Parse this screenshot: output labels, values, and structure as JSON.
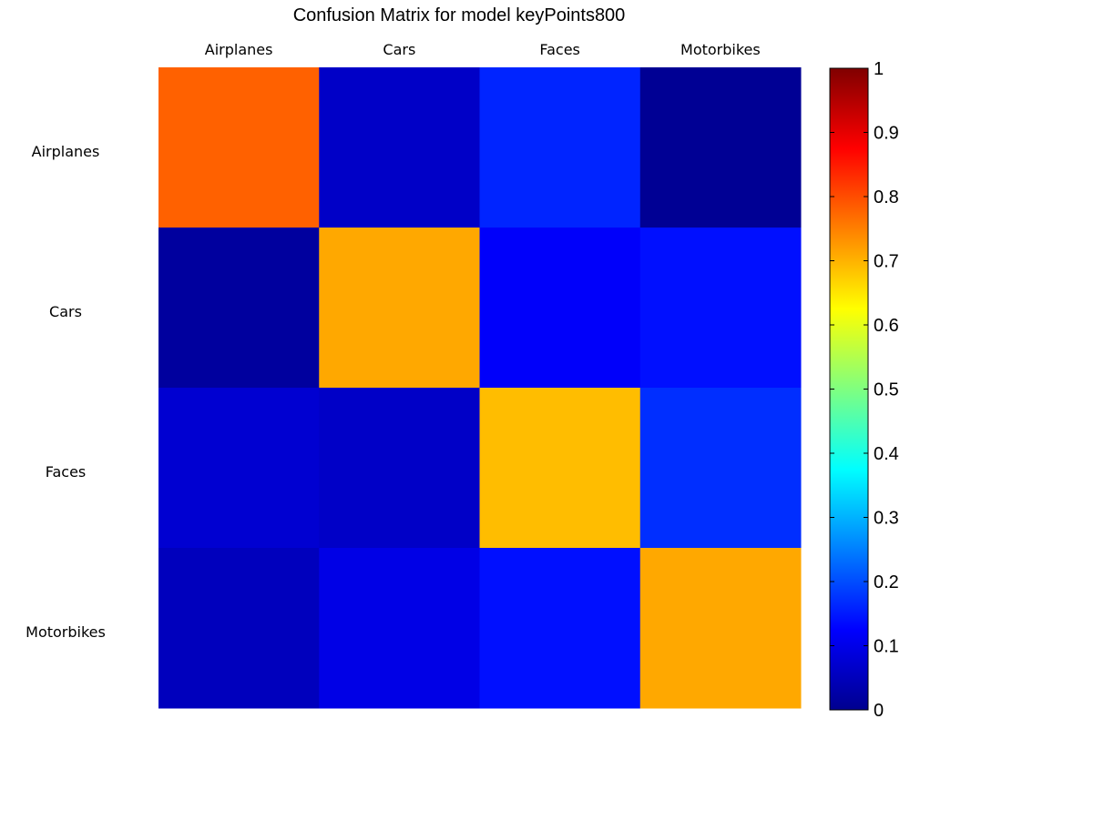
{
  "chart_data": {
    "type": "heatmap",
    "title": "Confusion Matrix for model keyPoints800",
    "column_labels": [
      "Airplanes",
      "Cars",
      "Faces",
      "Motorbikes"
    ],
    "row_labels": [
      "Airplanes",
      "Cars",
      "Faces",
      "Motorbikes"
    ],
    "values": [
      [
        0.78,
        0.07,
        0.16,
        0.02
      ],
      [
        0.03,
        0.71,
        0.12,
        0.14
      ],
      [
        0.08,
        0.07,
        0.69,
        0.17
      ],
      [
        0.06,
        0.1,
        0.14,
        0.71
      ]
    ],
    "colormap": "jet",
    "colorbar": {
      "range": [
        0,
        1
      ],
      "ticks": [
        0,
        0.1,
        0.2,
        0.3,
        0.4,
        0.5,
        0.6,
        0.7,
        0.8,
        0.9,
        1
      ],
      "tick_labels": [
        "0",
        "0.1",
        "0.2",
        "0.3",
        "0.4",
        "0.5",
        "0.6",
        "0.7",
        "0.8",
        "0.9",
        "1"
      ],
      "placement": "right"
    },
    "grid": false
  }
}
